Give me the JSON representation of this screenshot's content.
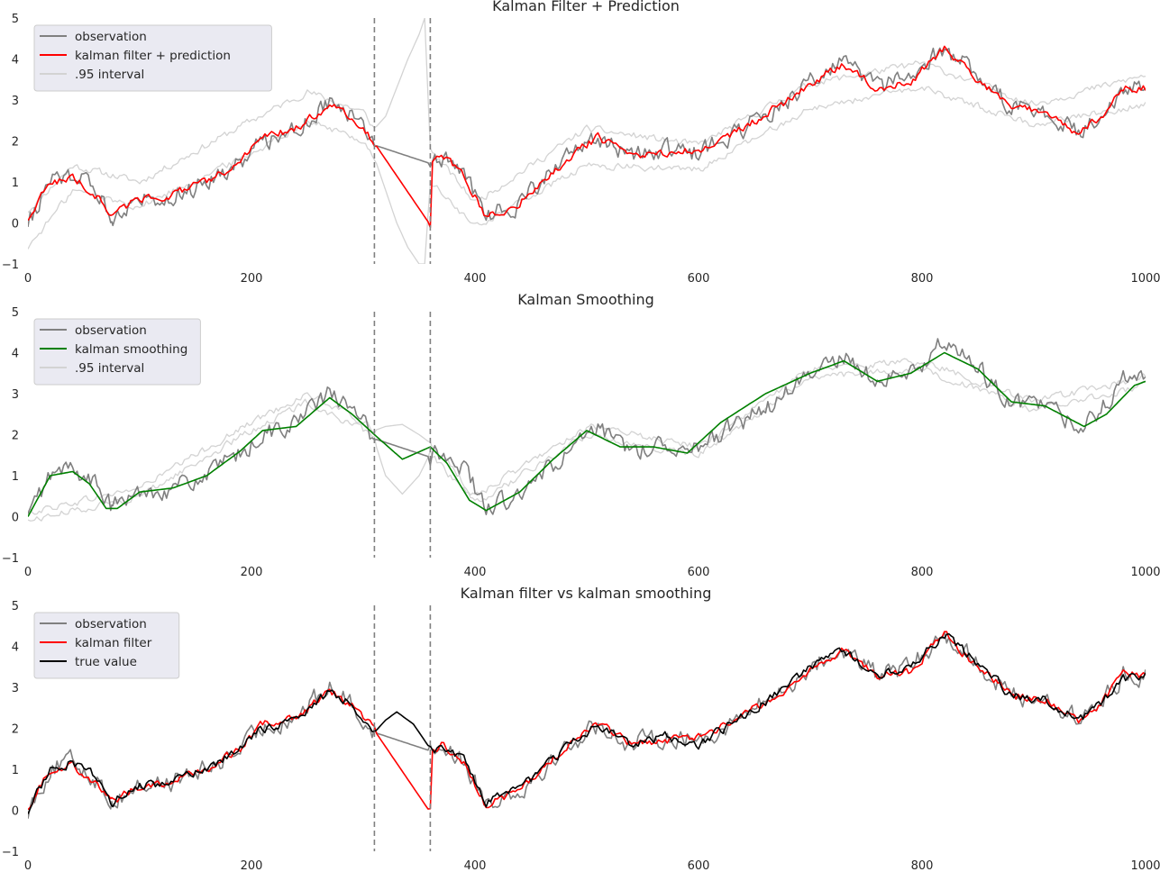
{
  "chart_data": [
    {
      "type": "line",
      "title": "Kalman Filter + Prediction",
      "xlim": [
        0,
        1000
      ],
      "ylim": [
        -1,
        5
      ],
      "xticks": [
        "0",
        "200",
        "400",
        "600",
        "800",
        "1000"
      ],
      "yticks": [
        "−1",
        "0",
        "1",
        "2",
        "3",
        "4",
        "5"
      ],
      "vlines": [
        310,
        360
      ],
      "legend": {
        "position": "upper-left",
        "entries": [
          {
            "label": "observation",
            "color": "#808080"
          },
          {
            "label": "kalman filter + prediction",
            "color": "#ff0000"
          },
          {
            "label": ".95 interval",
            "color": "#d3d3d3"
          }
        ]
      },
      "series": [
        {
          "name": "observation",
          "color": "#808080",
          "x": [
            0,
            20,
            40,
            60,
            75,
            100,
            130,
            160,
            190,
            210,
            240,
            270,
            290,
            310,
            360,
            370,
            390,
            410,
            440,
            480,
            510,
            540,
            570,
            600,
            640,
            680,
            700,
            730,
            760,
            790,
            820,
            850,
            880,
            910,
            940,
            960,
            980,
            1000
          ],
          "y": [
            0.0,
            1.0,
            1.2,
            0.8,
            0.2,
            0.6,
            0.7,
            1.0,
            1.5,
            2.0,
            2.3,
            3.0,
            2.6,
            1.9,
            1.45,
            1.6,
            1.2,
            0.2,
            0.5,
            1.5,
            2.1,
            1.6,
            1.8,
            1.7,
            2.3,
            3.0,
            3.5,
            3.9,
            3.3,
            3.5,
            4.3,
            3.6,
            2.8,
            2.7,
            2.2,
            2.6,
            3.3,
            3.3
          ]
        },
        {
          "name": "kalman filter + prediction",
          "color": "#ff0000",
          "x": [
            0,
            20,
            40,
            60,
            75,
            100,
            130,
            160,
            190,
            210,
            240,
            270,
            290,
            310,
            360,
            362,
            370,
            390,
            410,
            440,
            480,
            510,
            540,
            570,
            600,
            640,
            680,
            700,
            730,
            760,
            790,
            820,
            850,
            880,
            910,
            940,
            960,
            980,
            1000
          ],
          "y": [
            0.1,
            1.0,
            1.1,
            0.7,
            0.2,
            0.6,
            0.7,
            1.0,
            1.5,
            2.1,
            2.3,
            2.9,
            2.6,
            1.95,
            -0.05,
            1.5,
            1.6,
            1.2,
            0.1,
            0.5,
            1.5,
            2.1,
            1.6,
            1.7,
            1.8,
            2.3,
            3.0,
            3.4,
            3.9,
            3.3,
            3.4,
            4.3,
            3.5,
            2.8,
            2.7,
            2.2,
            2.6,
            3.3,
            3.3
          ]
        },
        {
          "name": ".95 interval upper",
          "color": "#d3d3d3",
          "x": [
            0,
            40,
            100,
            200,
            250,
            300,
            310,
            320,
            330,
            340,
            350,
            355,
            360,
            400,
            500,
            600,
            700,
            800,
            900,
            1000
          ],
          "y": [
            0.3,
            1.4,
            1.0,
            2.5,
            3.2,
            2.7,
            2.3,
            2.6,
            3.3,
            4.0,
            4.6,
            5.0,
            1.8,
            0.5,
            2.3,
            1.9,
            3.4,
            3.9,
            2.9,
            3.6
          ]
        },
        {
          "name": ".95 interval lower",
          "color": "#d3d3d3",
          "x": [
            0,
            40,
            100,
            200,
            250,
            300,
            310,
            320,
            330,
            340,
            350,
            355,
            360,
            400,
            500,
            600,
            700,
            800,
            900,
            1000
          ],
          "y": [
            -0.6,
            0.8,
            0.4,
            1.7,
            2.5,
            2.0,
            1.6,
            0.8,
            0.0,
            -0.6,
            -1.0,
            -1.0,
            1.0,
            -0.1,
            1.4,
            1.3,
            2.8,
            3.3,
            2.4,
            2.9
          ]
        }
      ]
    },
    {
      "type": "line",
      "title": "Kalman Smoothing",
      "xlim": [
        0,
        1000
      ],
      "ylim": [
        -1,
        5
      ],
      "xticks": [
        "0",
        "200",
        "400",
        "600",
        "800",
        "1000"
      ],
      "yticks": [
        "−1",
        "0",
        "1",
        "2",
        "3",
        "4",
        "5"
      ],
      "vlines": [
        310,
        360
      ],
      "legend": {
        "position": "upper-left",
        "entries": [
          {
            "label": "observation",
            "color": "#808080"
          },
          {
            "label": "kalman smoothing",
            "color": "#008000"
          },
          {
            "label": ".95 interval",
            "color": "#d3d3d3"
          }
        ]
      },
      "series": [
        {
          "name": "observation",
          "color": "#808080",
          "x": [
            0,
            20,
            40,
            60,
            75,
            100,
            130,
            160,
            190,
            210,
            240,
            270,
            290,
            310,
            360,
            370,
            390,
            410,
            440,
            480,
            510,
            540,
            570,
            600,
            640,
            680,
            700,
            730,
            760,
            790,
            820,
            850,
            880,
            910,
            940,
            960,
            980,
            1000
          ],
          "y": [
            0.0,
            1.0,
            1.2,
            0.8,
            0.2,
            0.6,
            0.7,
            1.0,
            1.5,
            2.0,
            2.3,
            3.0,
            2.6,
            1.9,
            1.45,
            1.6,
            1.2,
            0.2,
            0.5,
            1.5,
            2.1,
            1.6,
            1.8,
            1.7,
            2.3,
            3.0,
            3.5,
            3.9,
            3.3,
            3.5,
            4.3,
            3.6,
            2.8,
            2.7,
            2.2,
            2.6,
            3.3,
            3.3
          ]
        },
        {
          "name": "kalman smoothing",
          "color": "#008000",
          "x": [
            0,
            20,
            40,
            55,
            70,
            80,
            100,
            130,
            160,
            190,
            210,
            240,
            270,
            290,
            310,
            335,
            360,
            375,
            395,
            410,
            440,
            470,
            500,
            530,
            560,
            590,
            620,
            660,
            700,
            730,
            760,
            790,
            820,
            850,
            880,
            910,
            945,
            965,
            990,
            1000
          ],
          "y": [
            0.0,
            1.0,
            1.1,
            0.8,
            0.2,
            0.2,
            0.6,
            0.7,
            1.0,
            1.6,
            2.1,
            2.2,
            2.9,
            2.5,
            2.0,
            1.4,
            1.7,
            1.3,
            0.4,
            0.15,
            0.6,
            1.4,
            2.1,
            1.7,
            1.7,
            1.55,
            2.3,
            3.0,
            3.5,
            3.8,
            3.3,
            3.5,
            4.0,
            3.6,
            2.8,
            2.7,
            2.2,
            2.5,
            3.2,
            3.3
          ]
        },
        {
          "name": ".95 interval upper",
          "color": "#d3d3d3",
          "x": [
            0,
            100,
            200,
            250,
            300,
            310,
            320,
            335,
            350,
            360,
            400,
            500,
            600,
            700,
            800,
            900,
            1000
          ],
          "y": [
            0.1,
            0.7,
            2.3,
            3.0,
            2.3,
            2.1,
            2.2,
            2.25,
            2.0,
            1.8,
            0.5,
            2.2,
            1.7,
            3.6,
            3.8,
            2.8,
            3.4
          ]
        },
        {
          "name": ".95 interval lower",
          "color": "#d3d3d3",
          "x": [
            0,
            100,
            200,
            250,
            300,
            310,
            320,
            335,
            350,
            360,
            400,
            500,
            600,
            700,
            800,
            900,
            1000
          ],
          "y": [
            -0.1,
            0.5,
            2.1,
            2.8,
            2.1,
            1.85,
            1.0,
            0.55,
            1.0,
            1.55,
            0.3,
            2.0,
            1.5,
            3.4,
            3.6,
            2.6,
            3.2
          ]
        }
      ]
    },
    {
      "type": "line",
      "title": "Kalman filter vs kalman smoothing",
      "xlim": [
        0,
        1000
      ],
      "ylim": [
        -1,
        5
      ],
      "xticks": [
        "0",
        "200",
        "400",
        "600",
        "800",
        "1000"
      ],
      "yticks": [
        "−1",
        "0",
        "1",
        "2",
        "3",
        "4",
        "5"
      ],
      "vlines": [
        310,
        360
      ],
      "legend": {
        "position": "upper-left",
        "entries": [
          {
            "label": "observation",
            "color": "#808080"
          },
          {
            "label": "kalman filter",
            "color": "#ff0000"
          },
          {
            "label": "true value",
            "color": "#000000"
          }
        ]
      },
      "series": [
        {
          "name": "observation",
          "color": "#808080",
          "x": [
            0,
            20,
            40,
            60,
            75,
            100,
            130,
            160,
            190,
            210,
            240,
            270,
            290,
            310,
            360,
            370,
            390,
            410,
            440,
            480,
            510,
            540,
            570,
            600,
            640,
            680,
            700,
            730,
            760,
            790,
            820,
            850,
            880,
            910,
            940,
            960,
            980,
            1000
          ],
          "y": [
            0.0,
            1.0,
            1.2,
            0.8,
            0.2,
            0.6,
            0.7,
            1.0,
            1.5,
            2.0,
            2.3,
            3.0,
            2.6,
            1.9,
            1.45,
            1.6,
            1.2,
            0.2,
            0.5,
            1.5,
            2.1,
            1.6,
            1.8,
            1.7,
            2.3,
            3.0,
            3.5,
            3.9,
            3.3,
            3.5,
            4.3,
            3.6,
            2.8,
            2.7,
            2.2,
            2.6,
            3.3,
            3.3
          ]
        },
        {
          "name": "kalman filter",
          "color": "#ff0000",
          "x": [
            0,
            20,
            40,
            60,
            75,
            100,
            130,
            160,
            190,
            210,
            240,
            270,
            290,
            310,
            360,
            362,
            370,
            390,
            410,
            440,
            480,
            510,
            540,
            570,
            600,
            640,
            680,
            700,
            730,
            760,
            790,
            820,
            850,
            880,
            910,
            940,
            960,
            980,
            1000
          ],
          "y": [
            0.1,
            1.0,
            1.1,
            0.7,
            0.2,
            0.6,
            0.7,
            1.0,
            1.5,
            2.1,
            2.3,
            2.9,
            2.6,
            1.95,
            -0.05,
            1.5,
            1.6,
            1.2,
            0.1,
            0.5,
            1.5,
            2.1,
            1.6,
            1.7,
            1.8,
            2.3,
            3.0,
            3.4,
            3.9,
            3.3,
            3.4,
            4.3,
            3.5,
            2.8,
            2.7,
            2.2,
            2.6,
            3.3,
            3.3
          ]
        },
        {
          "name": "true value",
          "color": "#000000",
          "x": [
            0,
            20,
            40,
            60,
            75,
            100,
            130,
            160,
            190,
            210,
            240,
            270,
            290,
            310,
            320,
            330,
            345,
            360,
            370,
            390,
            410,
            440,
            480,
            510,
            540,
            570,
            600,
            640,
            680,
            700,
            730,
            760,
            790,
            820,
            850,
            880,
            910,
            940,
            960,
            980,
            1000
          ],
          "y": [
            0.0,
            1.0,
            1.2,
            0.8,
            0.2,
            0.6,
            0.7,
            1.0,
            1.5,
            2.0,
            2.2,
            2.9,
            2.6,
            1.9,
            2.2,
            2.4,
            2.1,
            1.5,
            1.55,
            1.2,
            0.2,
            0.5,
            1.5,
            2.1,
            1.6,
            1.8,
            1.6,
            2.3,
            3.0,
            3.5,
            3.9,
            3.3,
            3.5,
            4.3,
            3.6,
            2.8,
            2.7,
            2.2,
            2.6,
            3.2,
            3.3
          ]
        }
      ]
    }
  ]
}
